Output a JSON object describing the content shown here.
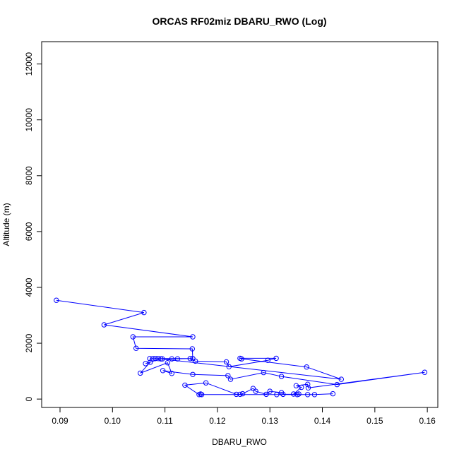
{
  "chart_data": {
    "type": "line",
    "title": "ORCAS RF02miz DBARU_RWO (Log)",
    "xlabel": "DBARU_RWO",
    "ylabel": "Altitude (m)",
    "xlim": [
      0.0865,
      0.162
    ],
    "ylim": [
      -300,
      12800
    ],
    "xticks": [
      0.09,
      0.1,
      0.11,
      0.12,
      0.13,
      0.14,
      0.15,
      0.16
    ],
    "xtick_labels": [
      "0.09",
      "0.10",
      "0.11",
      "0.12",
      "0.13",
      "0.14",
      "0.15",
      "0.16"
    ],
    "yticks": [
      0,
      2000,
      4000,
      6000,
      8000,
      10000,
      12000
    ],
    "ytick_labels": [
      "0",
      "2000",
      "4000",
      "6000",
      "8000",
      "10000",
      "12000"
    ],
    "grid": false,
    "series": [
      {
        "color": "#0000ff",
        "marker": "open-circle",
        "points": [
          [
            0.0893,
            3540
          ],
          [
            0.106,
            3100
          ],
          [
            0.0984,
            2660
          ],
          [
            0.1153,
            2230
          ],
          [
            0.1039,
            2230
          ],
          [
            0.1045,
            1820
          ],
          [
            0.1152,
            1800
          ],
          [
            0.1153,
            1450
          ],
          [
            0.1071,
            1450
          ],
          [
            0.1077,
            1450
          ],
          [
            0.1082,
            1450
          ],
          [
            0.1087,
            1450
          ],
          [
            0.1095,
            1440
          ],
          [
            0.1113,
            1440
          ],
          [
            0.1124,
            1440
          ],
          [
            0.1148,
            1450
          ],
          [
            0.1158,
            1360
          ],
          [
            0.1217,
            1330
          ],
          [
            0.1222,
            1160
          ],
          [
            0.1296,
            1390
          ],
          [
            0.1312,
            1460
          ],
          [
            0.1243,
            1460
          ],
          [
            0.1246,
            1440
          ],
          [
            0.137,
            1150
          ],
          [
            0.1436,
            710
          ],
          [
            0.1092,
            1440
          ],
          [
            0.1063,
            1270
          ],
          [
            0.1072,
            1320
          ],
          [
            0.1053,
            930
          ],
          [
            0.1105,
            1300
          ],
          [
            0.1113,
            920
          ],
          [
            0.1096,
            1020
          ],
          [
            0.1153,
            880
          ],
          [
            0.122,
            840
          ],
          [
            0.1225,
            710
          ],
          [
            0.1288,
            950
          ],
          [
            0.1322,
            810
          ],
          [
            0.1428,
            520
          ],
          [
            0.1595,
            960
          ],
          [
            0.1373,
            400
          ],
          [
            0.1372,
            530
          ],
          [
            0.135,
            480
          ],
          [
            0.136,
            420
          ],
          [
            0.1345,
            180
          ],
          [
            0.1352,
            160
          ],
          [
            0.1355,
            180
          ],
          [
            0.1325,
            170
          ],
          [
            0.1322,
            230
          ],
          [
            0.13,
            280
          ],
          [
            0.1293,
            170
          ],
          [
            0.1273,
            280
          ],
          [
            0.1268,
            380
          ],
          [
            0.1248,
            190
          ],
          [
            0.1243,
            170
          ],
          [
            0.1236,
            170
          ],
          [
            0.1178,
            580
          ],
          [
            0.1138,
            500
          ],
          [
            0.1165,
            160
          ],
          [
            0.1168,
            180
          ],
          [
            0.117,
            160
          ],
          [
            0.1313,
            160
          ],
          [
            0.1372,
            160
          ],
          [
            0.1385,
            160
          ],
          [
            0.142,
            190
          ]
        ]
      }
    ]
  }
}
